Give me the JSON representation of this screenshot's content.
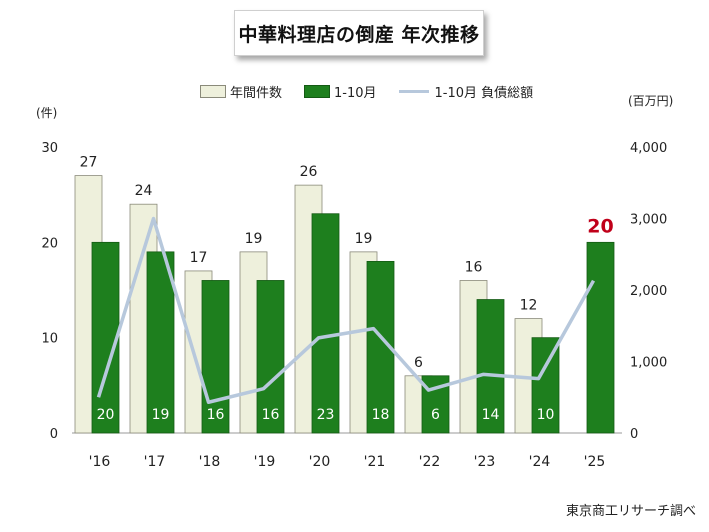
{
  "title": "中華料理店の倒産 年次推移",
  "legend": {
    "annual": "年間件数",
    "jan_oct": "1-10月",
    "debt": "1-10月 負債総額"
  },
  "units": {
    "left": "(件)",
    "right": "(百万円)"
  },
  "source": "東京商工リサーチ調べ",
  "colors": {
    "annual_fill": "#eef0dc",
    "annual_stroke": "#8a8a7a",
    "jan_oct_fill": "#1e7f1e",
    "debt_line": "#b7c8dc",
    "highlight_label": "#c0001a"
  },
  "chart_data": {
    "type": "bar",
    "categories": [
      "'16",
      "'17",
      "'18",
      "'19",
      "'20",
      "'21",
      "'22",
      "'23",
      "'24",
      "'25"
    ],
    "series": [
      {
        "name": "年間件数",
        "values": [
          27,
          24,
          17,
          19,
          26,
          19,
          6,
          16,
          12,
          null
        ]
      },
      {
        "name": "1-10月",
        "values": [
          20,
          19,
          16,
          16,
          23,
          18,
          6,
          14,
          10,
          20
        ]
      },
      {
        "name": "1-10月 負債総額",
        "type": "line",
        "axis": "right",
        "values": [
          500,
          3000,
          430,
          620,
          1330,
          1460,
          600,
          820,
          760,
          2130
        ]
      }
    ],
    "y_left": {
      "range": [
        0,
        30
      ],
      "ticks": [
        "0",
        "10",
        "20",
        "30"
      ]
    },
    "y_right": {
      "range": [
        0,
        4000
      ],
      "ticks": [
        "0",
        "1,000",
        "2,000",
        "3,000",
        "4,000"
      ]
    },
    "grid": false
  }
}
